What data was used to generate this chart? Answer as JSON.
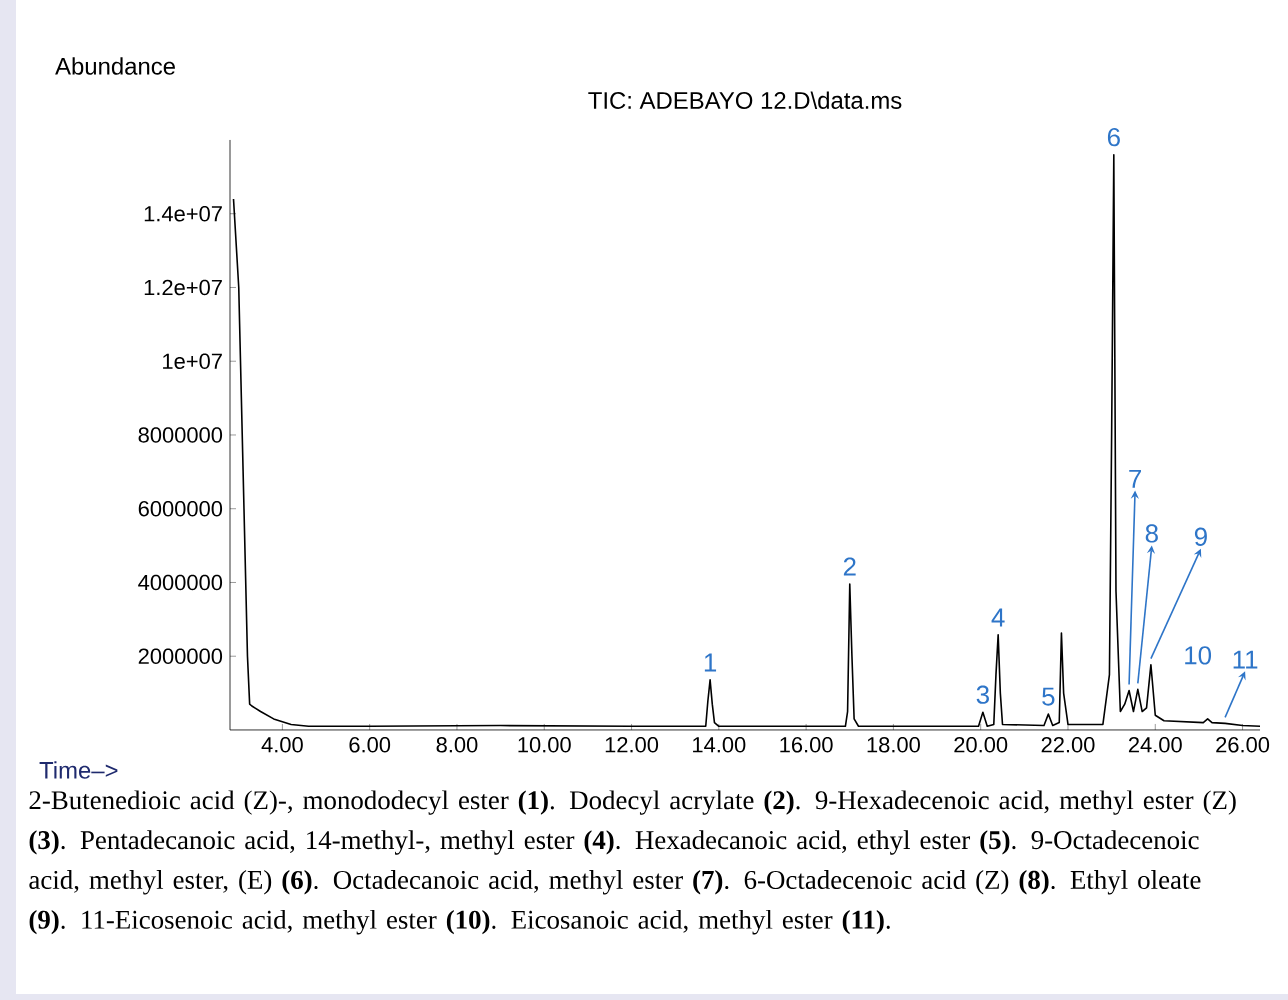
{
  "chart_data": {
    "type": "line",
    "title": "TIC: ADEBAYO 12.D\\data.ms",
    "ylabel": "Abundance",
    "xlabel": "Time–>",
    "xlim": [
      2.8,
      26.4
    ],
    "ylim": [
      0,
      16000000
    ],
    "xticks": [
      {
        "value": 4,
        "label": "4.00"
      },
      {
        "value": 6,
        "label": "6.00"
      },
      {
        "value": 8,
        "label": "8.00"
      },
      {
        "value": 10,
        "label": "10.00"
      },
      {
        "value": 12,
        "label": "12.00"
      },
      {
        "value": 14,
        "label": "14.00"
      },
      {
        "value": 16,
        "label": "16.00"
      },
      {
        "value": 18,
        "label": "18.00"
      },
      {
        "value": 20,
        "label": "20.00"
      },
      {
        "value": 22,
        "label": "22.00"
      },
      {
        "value": 24,
        "label": "24.00"
      },
      {
        "value": 26,
        "label": "26.00"
      }
    ],
    "yticks": [
      2000000,
      4000000,
      6000000,
      8000000,
      {
        "value": 10000000,
        "label": "1e+07"
      },
      {
        "value": 12000000,
        "label": "1.2e+07"
      },
      {
        "value": 14000000,
        "label": "1.4e+07"
      }
    ],
    "grid": false,
    "series": [
      {
        "color": "#000000",
        "x": [
          2.88,
          3.0,
          3.1,
          3.2,
          3.25,
          3.3,
          3.5,
          3.8,
          4.2,
          4.6,
          6.0,
          9.0,
          12.0,
          13.7,
          13.75,
          13.8,
          13.85,
          13.9,
          14.0,
          16.9,
          16.95,
          17.0,
          17.05,
          17.1,
          17.2,
          19.95,
          20.05,
          20.15,
          20.3,
          20.35,
          20.4,
          20.45,
          20.5,
          21.45,
          21.55,
          21.65,
          21.8,
          21.85,
          21.9,
          22.0,
          22.8,
          22.95,
          23.0,
          23.05,
          23.1,
          23.2,
          23.3,
          23.4,
          23.5,
          23.6,
          23.7,
          23.8,
          23.9,
          24.0,
          24.2,
          25.1,
          25.2,
          25.3,
          25.6,
          26.0,
          26.4
        ],
        "values": [
          14400000,
          12000000,
          7000000,
          2000000,
          700000,
          650000,
          500000,
          300000,
          150000,
          100000,
          100000,
          120000,
          100000,
          100000,
          800000,
          1360000,
          700000,
          200000,
          100000,
          100000,
          500000,
          3960000,
          2000000,
          300000,
          100000,
          100000,
          480000,
          100000,
          150000,
          1500000,
          2580000,
          1000000,
          150000,
          120000,
          430000,
          120000,
          200000,
          2630000,
          1000000,
          150000,
          150000,
          1500000,
          8000000,
          15600000,
          3760000,
          500000,
          700000,
          1070000,
          500000,
          1100000,
          500000,
          600000,
          1770000,
          400000,
          250000,
          200000,
          300000,
          200000,
          180000,
          120000,
          100000
        ]
      }
    ],
    "annotations": [
      {
        "text": "1",
        "x": 13.8,
        "y": 1360000
      },
      {
        "text": "2",
        "x": 17.0,
        "y": 3960000
      },
      {
        "text": "3",
        "x": 20.05,
        "y": 480000
      },
      {
        "text": "4",
        "x": 20.4,
        "y": 2580000
      },
      {
        "text": "5",
        "x": 21.55,
        "y": 430000
      },
      {
        "text": "6",
        "x": 23.05,
        "y": 15600000
      },
      {
        "text": "7",
        "x": 23.4,
        "y": 1070000
      },
      {
        "text": "8",
        "x": 23.6,
        "y": 1100000
      },
      {
        "text": "9",
        "x": 23.9,
        "y": 1770000
      },
      {
        "text": "10",
        "x": 25.2,
        "y": 300000
      },
      {
        "text": "11",
        "x": 25.6,
        "y": 180000
      },
      "2-Butenedioic acid (Z)-, monododecyl ester **(1)**. Dodecyl acrylate **(2)**. 9-Hexadecenoic acid, methyl ester (Z) **(3)**. Pentadecanoic acid, 14-methyl-, methyl ester **(4)**. Hexadecanoic acid, ethyl ester **(5)**. 9-Octadecenoic acid, methyl ester, (E) **(6)**. Octadecanoic acid, methyl ester **(7)**. 6-Octadecenoic acid (Z) **(8)**. Ethyl oleate **(9)**. 11-Eicosenoic acid, methyl ester **(10)**. Eicosanoic acid, methyl ester **(11)**."
    ]
  }
}
